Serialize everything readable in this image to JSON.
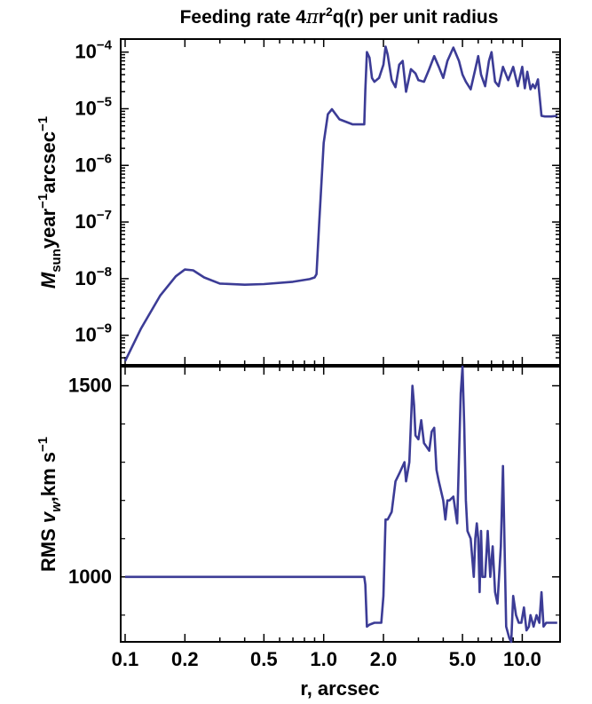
{
  "chart_data": [
    {
      "type": "line",
      "title_parts": [
        "Feeding rate 4",
        "π",
        "r",
        "2",
        "q(r)",
        " per unit radius"
      ],
      "ylabel_parts": [
        "M",
        "sun",
        "year",
        "−1",
        "arcsec",
        "−1"
      ],
      "xscale": "log",
      "yscale": "log",
      "xlim": [
        0.095,
        15.5
      ],
      "ylim": [
        3e-10,
        0.00017
      ],
      "yticks": [
        1e-09,
        1e-08,
        1e-07,
        1e-06,
        1e-05,
        0.0001
      ],
      "ytick_labels": [
        {
          "base": "10",
          "exp": "−9"
        },
        {
          "base": "10",
          "exp": "−8"
        },
        {
          "base": "10",
          "exp": "−7"
        },
        {
          "base": "10",
          "exp": "−6"
        },
        {
          "base": "10",
          "exp": "−5"
        },
        {
          "base": "10",
          "exp": "−4"
        }
      ],
      "line_color": "#3c3c96",
      "x": [
        0.1,
        0.12,
        0.15,
        0.18,
        0.2,
        0.22,
        0.25,
        0.3,
        0.4,
        0.5,
        0.7,
        0.85,
        0.9,
        0.92,
        0.95,
        1.0,
        1.05,
        1.1,
        1.2,
        1.4,
        1.6,
        1.62,
        1.65,
        1.7,
        1.75,
        1.8,
        1.9,
        2.0,
        2.05,
        2.1,
        2.2,
        2.3,
        2.4,
        2.5,
        2.6,
        2.75,
        2.9,
        3.0,
        3.2,
        3.4,
        3.6,
        3.8,
        4.0,
        4.2,
        4.5,
        4.8,
        5.0,
        5.2,
        5.5,
        5.8,
        6.0,
        6.2,
        6.5,
        6.8,
        7.0,
        7.3,
        7.6,
        8.0,
        8.5,
        9.0,
        9.5,
        10.0,
        10.3,
        10.6,
        11.0,
        11.3,
        11.6,
        12.0,
        12.5,
        13.0,
        14.0,
        15.0
      ],
      "y": [
        3.5e-10,
        1.3e-09,
        5e-09,
        1.1e-08,
        1.45e-08,
        1.4e-08,
        1.05e-08,
        8.2e-09,
        7.8e-09,
        8e-09,
        8.8e-09,
        9.8e-09,
        1.05e-08,
        1.2e-08,
        1e-07,
        2.5e-06,
        8e-06,
        9.8e-06,
        6.5e-06,
        5.3e-06,
        5.3e-06,
        2.1e-05,
        0.0001,
        8e-05,
        3.5e-05,
        3e-05,
        3.5e-05,
        6e-05,
        0.000125,
        9e-05,
        3.2e-05,
        2.4e-05,
        6e-05,
        7e-05,
        2e-05,
        5e-05,
        4.2e-05,
        3.2e-05,
        3e-05,
        5e-05,
        8.5e-05,
        5.5e-05,
        3.5e-05,
        7e-05,
        0.00012,
        7e-05,
        4e-05,
        3e-05,
        2.2e-05,
        5e-05,
        8.5e-05,
        4e-05,
        2.5e-05,
        7e-05,
        0.0001,
        3e-05,
        2.5e-05,
        5.5e-05,
        3.2e-05,
        5.5e-05,
        2.5e-05,
        5.5e-05,
        2.3e-05,
        4.5e-05,
        2.2e-05,
        2.7e-05,
        2.3e-05,
        3.3e-05,
        7.5e-06,
        7.3e-06,
        7.3e-06,
        7.5e-06
      ]
    },
    {
      "type": "line",
      "ylabel_parts": [
        "RMS ",
        "v",
        "w",
        ",km s",
        "−1"
      ],
      "xlabel": "r, arcsec",
      "xscale": "log",
      "yscale": "linear",
      "xlim": [
        0.095,
        15.5
      ],
      "ylim": [
        830,
        1550
      ],
      "yticks": [
        1000,
        1500
      ],
      "ytick_labels": [
        "1000",
        "1500"
      ],
      "xticks": [
        0.1,
        0.2,
        0.5,
        1.0,
        2.0,
        5.0,
        10.0
      ],
      "xtick_labels": [
        "0.1",
        "0.2",
        "0.5",
        "1.0",
        "2.0",
        "5.0",
        "10.0"
      ],
      "line_color": "#3c3c96",
      "x": [
        0.1,
        1.6,
        1.62,
        1.65,
        1.7,
        1.8,
        1.95,
        2.0,
        2.05,
        2.1,
        2.2,
        2.3,
        2.4,
        2.55,
        2.6,
        2.7,
        2.8,
        2.85,
        2.9,
        3.0,
        3.1,
        3.2,
        3.3,
        3.4,
        3.5,
        3.6,
        3.7,
        3.8,
        4.0,
        4.1,
        4.2,
        4.3,
        4.5,
        4.7,
        4.9,
        5.0,
        5.1,
        5.2,
        5.3,
        5.5,
        5.7,
        5.8,
        5.9,
        6.0,
        6.1,
        6.2,
        6.3,
        6.5,
        6.7,
        6.9,
        7.1,
        7.3,
        7.5,
        7.8,
        8.0,
        8.3,
        8.6,
        8.8,
        9.0,
        9.3,
        9.6,
        9.9,
        10.2,
        10.5,
        10.8,
        11.0,
        11.4,
        11.8,
        12.2,
        12.5,
        12.8,
        13.2,
        14.0,
        15.0
      ],
      "y": [
        1000,
        1000,
        980,
        870,
        875,
        880,
        880,
        950,
        1150,
        1150,
        1170,
        1250,
        1270,
        1300,
        1250,
        1300,
        1500,
        1450,
        1370,
        1360,
        1410,
        1350,
        1340,
        1330,
        1380,
        1390,
        1280,
        1250,
        1200,
        1150,
        1200,
        1200,
        1210,
        1140,
        1480,
        1550,
        1400,
        1200,
        1120,
        1100,
        1000,
        1100,
        1140,
        1100,
        960,
        1120,
        1000,
        1000,
        1120,
        1000,
        1080,
        960,
        930,
        1080,
        1290,
        870,
        840,
        830,
        950,
        900,
        880,
        880,
        920,
        860,
        870,
        900,
        870,
        900,
        880,
        960,
        870,
        880,
        880,
        880
      ]
    }
  ]
}
